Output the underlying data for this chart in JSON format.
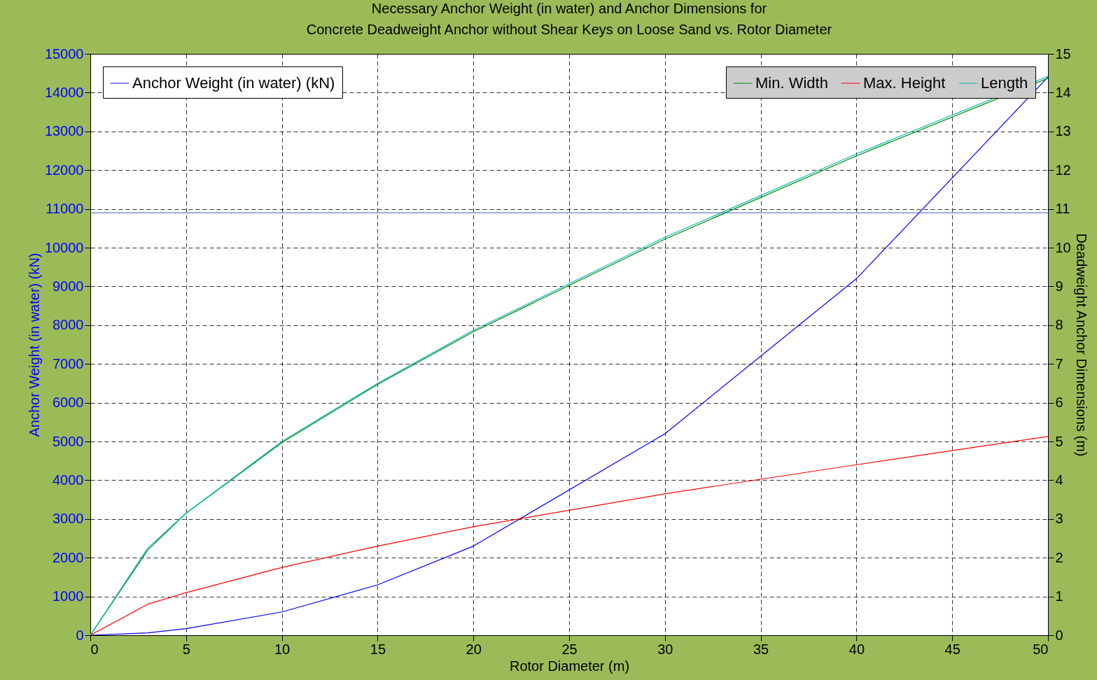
{
  "chart_data": {
    "type": "line",
    "title": "Necessary Anchor Weight (in water) and Anchor Dimensions for\nConcrete Deadweight Anchor without Shear Keys on Loose Sand  vs. Rotor Diameter",
    "xlabel": "Rotor Diameter (m)",
    "ylabel": "Anchor Weight (in water) (kN)",
    "y2label": "Deadweight Anchor Dimensions (m)",
    "x": [
      0,
      3,
      5,
      10,
      15,
      20,
      30,
      40,
      50
    ],
    "series": [
      {
        "name": "Anchor Weight (in water) (kN)",
        "color": "#0000ff",
        "values": [
          0,
          60,
          170,
          600,
          1300,
          2300,
          5200,
          9200,
          14400
        ]
      },
      {
        "name": "Min. Width",
        "color": "#008000",
        "axis": "y2",
        "values": [
          0,
          2.2,
          3.15,
          4.97,
          6.47,
          7.83,
          10.22,
          12.37,
          14.37
        ]
      },
      {
        "name": "Max. Height",
        "color": "#ff0000",
        "axis": "y2",
        "values": [
          0,
          0.8,
          1.1,
          1.75,
          2.3,
          2.8,
          3.65,
          4.4,
          5.13
        ]
      },
      {
        "name": "Length",
        "color": "#00bfbf",
        "axis": "y2",
        "values": [
          0,
          2.25,
          3.15,
          5.0,
          6.5,
          7.87,
          10.27,
          12.42,
          14.42
        ]
      }
    ],
    "xlim": [
      0,
      50
    ],
    "xticks": [
      0,
      5,
      10,
      15,
      20,
      25,
      30,
      35,
      40,
      45,
      50
    ],
    "ylim": [
      0,
      15000
    ],
    "yticks": [
      0,
      1000,
      2000,
      3000,
      4000,
      5000,
      6000,
      7000,
      8000,
      9000,
      10000,
      11000,
      12000,
      13000,
      14000,
      15000
    ],
    "y2lim": [
      0,
      15
    ],
    "y2ticks": [
      0,
      1,
      2,
      3,
      4,
      5,
      6,
      7,
      8,
      9,
      10,
      11,
      12,
      13,
      14,
      15
    ],
    "ref_lines": [
      {
        "axis": "y",
        "value": 10900,
        "color": "#4060c0"
      }
    ],
    "grid": true,
    "legend": "top",
    "line_style": "solid"
  }
}
